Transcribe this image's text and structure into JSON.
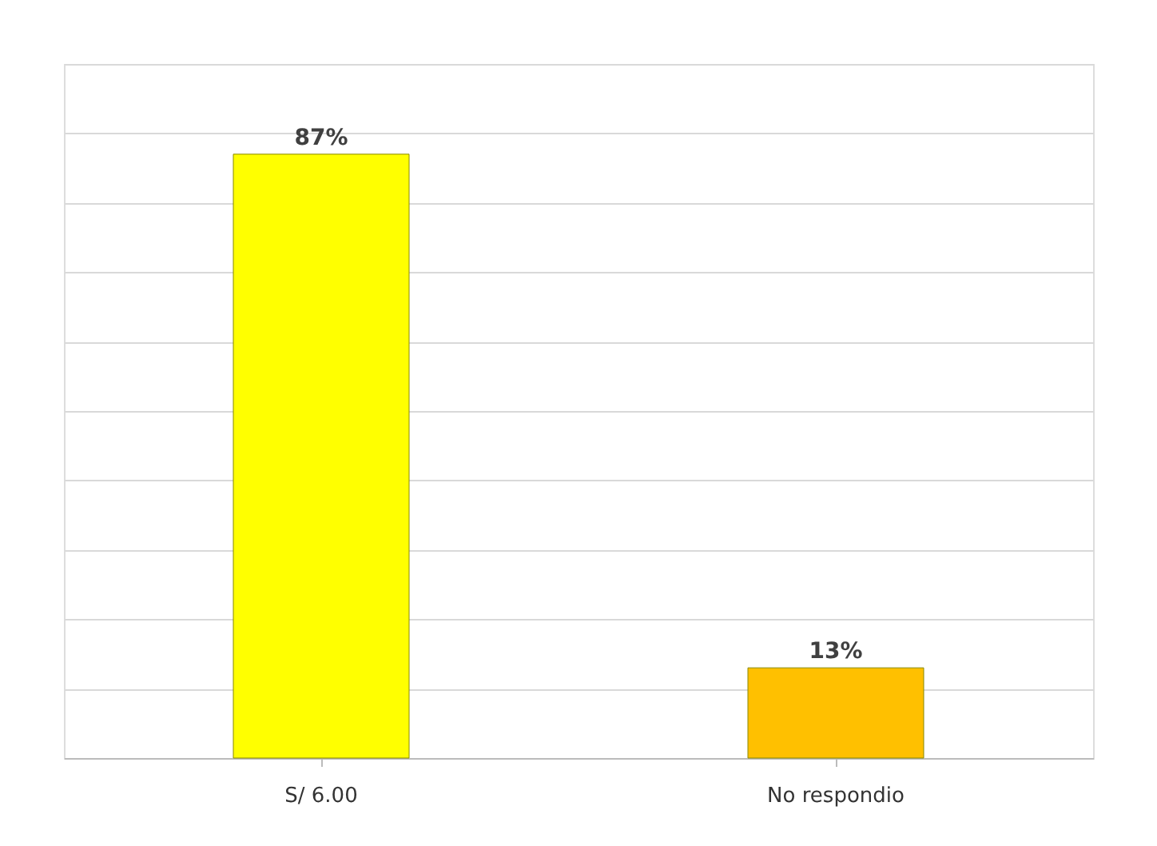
{
  "chart_data": {
    "type": "bar",
    "categories": [
      "S/ 6.00",
      "No respondio"
    ],
    "values": [
      87,
      13
    ],
    "colors": [
      "#ffff00",
      "#ffc000"
    ],
    "value_labels": [
      "87%",
      "13%"
    ],
    "ylim": [
      0,
      100
    ],
    "grid": "y",
    "tick_labels": "x"
  }
}
